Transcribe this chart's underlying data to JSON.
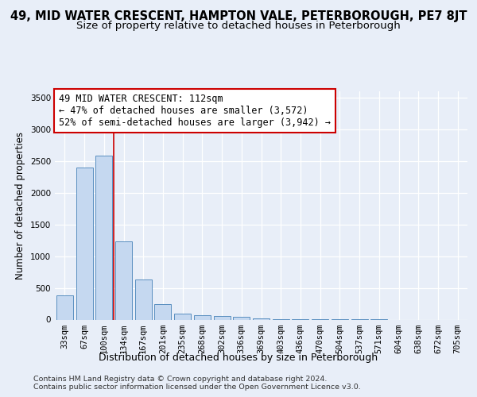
{
  "title": "49, MID WATER CRESCENT, HAMPTON VALE, PETERBOROUGH, PE7 8JT",
  "subtitle": "Size of property relative to detached houses in Peterborough",
  "xlabel": "Distribution of detached houses by size in Peterborough",
  "ylabel": "Number of detached properties",
  "categories": [
    "33sqm",
    "67sqm",
    "100sqm",
    "134sqm",
    "167sqm",
    "201sqm",
    "235sqm",
    "268sqm",
    "302sqm",
    "336sqm",
    "369sqm",
    "403sqm",
    "436sqm",
    "470sqm",
    "504sqm",
    "537sqm",
    "571sqm",
    "604sqm",
    "638sqm",
    "672sqm",
    "705sqm"
  ],
  "values": [
    380,
    2400,
    2590,
    1230,
    630,
    250,
    100,
    70,
    60,
    50,
    20,
    10,
    5,
    3,
    2,
    1,
    1,
    0,
    0,
    0,
    0
  ],
  "bar_color": "#c5d8f0",
  "bar_edge_color": "#5a8fc0",
  "vline_x": 2.5,
  "vline_color": "#cc0000",
  "annotation_text": "49 MID WATER CRESCENT: 112sqm\n← 47% of detached houses are smaller (3,572)\n52% of semi-detached houses are larger (3,942) →",
  "annotation_box_color": "#ffffff",
  "annotation_box_edge": "#cc0000",
  "ylim": [
    0,
    3600
  ],
  "yticks": [
    0,
    500,
    1000,
    1500,
    2000,
    2500,
    3000,
    3500
  ],
  "bg_color": "#e8eef8",
  "footer_text": "Contains HM Land Registry data © Crown copyright and database right 2024.\nContains public sector information licensed under the Open Government Licence v3.0.",
  "title_fontsize": 10.5,
  "subtitle_fontsize": 9.5,
  "xlabel_fontsize": 9,
  "ylabel_fontsize": 8.5,
  "tick_fontsize": 7.5,
  "annotation_fontsize": 8.5,
  "footer_fontsize": 6.8
}
